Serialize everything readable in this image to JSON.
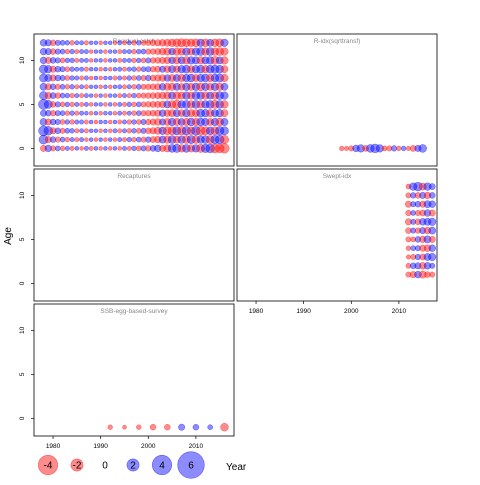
{
  "ylabel": "Age",
  "xlabel": "Year",
  "x_ticks": [
    "1980",
    "1990",
    "2000",
    "2010"
  ],
  "y_ticks": [
    "0",
    "5",
    "10"
  ],
  "colors": {
    "negative": "#ff0000",
    "positive": "#0000ff",
    "frame": "#000000",
    "panel_title": "#888888"
  },
  "legend": {
    "labels": [
      "-4",
      "-2",
      "0",
      "2",
      "4",
      "6"
    ],
    "values": [
      -4,
      -2,
      0,
      2,
      4,
      6
    ],
    "year_label": "Year"
  },
  "chart_data": [
    {
      "type": "bubble",
      "title": "Residual catch",
      "xlim": [
        1976,
        2018
      ],
      "ylim": [
        -2,
        13
      ],
      "years": [
        1978,
        1979,
        1980,
        1981,
        1982,
        1983,
        1984,
        1985,
        1986,
        1987,
        1988,
        1989,
        1990,
        1991,
        1992,
        1993,
        1994,
        1995,
        1996,
        1997,
        1998,
        1999,
        2000,
        2001,
        2002,
        2003,
        2004,
        2005,
        2006,
        2007,
        2008,
        2009,
        2010,
        2011,
        2012,
        2013,
        2014,
        2015,
        2016
      ],
      "ages": [
        0,
        1,
        2,
        3,
        4,
        5,
        6,
        7,
        8,
        9,
        10,
        11,
        12
      ],
      "note": "residuals by year (rows ordered by age 0..12, columns by year 1978..2016)",
      "residuals": [
        [
          -1.0,
          1.2,
          -0.6,
          0.5,
          -0.4,
          0.3,
          -0.3,
          0.2,
          -0.2,
          0.3,
          -0.3,
          0.2,
          -0.2,
          0.2,
          -0.2,
          0.2,
          -0.2,
          0.3,
          -0.3,
          0.4,
          -0.5,
          0.6,
          -0.7,
          0.8,
          1.2,
          -1.0,
          -1.4,
          1.8,
          2.0,
          -1.6,
          1.8,
          -1.5,
          1.6,
          -2.0,
          2.2,
          2.4,
          -2.6,
          -2.4,
          -3.0
        ],
        [
          2.6,
          -1.0,
          0.8,
          -0.6,
          0.5,
          -0.4,
          0.3,
          -0.3,
          0.3,
          -0.2,
          0.2,
          -0.2,
          0.2,
          -0.2,
          0.2,
          -0.2,
          0.3,
          -0.3,
          0.4,
          -0.4,
          0.5,
          -0.6,
          0.7,
          -0.9,
          -1.2,
          1.4,
          -1.6,
          1.8,
          -1.5,
          1.6,
          -1.8,
          2.0,
          -1.8,
          1.6,
          1.8,
          -2.0,
          2.2,
          2.4,
          -2.2
        ],
        [
          3.2,
          2.4,
          -1.0,
          0.8,
          -0.6,
          0.5,
          0.4,
          -0.3,
          0.3,
          -0.3,
          0.2,
          0.2,
          -0.2,
          0.2,
          -0.2,
          0.3,
          -0.3,
          0.3,
          -0.4,
          0.4,
          -0.5,
          0.6,
          -0.8,
          -1.0,
          -1.4,
          1.6,
          -1.8,
          -2.0,
          2.0,
          -2.2,
          2.2,
          -1.8,
          2.4,
          -2.6,
          -2.0,
          1.8,
          -2.0,
          2.2,
          2.0
        ],
        [
          1.4,
          -1.0,
          0.8,
          0.6,
          -0.5,
          0.4,
          -0.4,
          0.3,
          0.3,
          -0.3,
          0.2,
          -0.2,
          0.2,
          0.2,
          -0.2,
          0.2,
          -0.3,
          0.3,
          -0.4,
          0.4,
          -0.5,
          0.6,
          -0.7,
          -0.9,
          -1.2,
          1.0,
          -1.4,
          1.6,
          -1.5,
          1.4,
          -1.6,
          1.8,
          -1.6,
          1.8,
          1.6,
          -1.4,
          1.6,
          -1.8,
          1.5
        ],
        [
          1.0,
          0.8,
          -0.7,
          0.6,
          0.5,
          -0.4,
          0.4,
          -0.3,
          0.3,
          0.2,
          -0.2,
          0.2,
          -0.2,
          0.2,
          0.2,
          -0.2,
          0.3,
          -0.3,
          0.3,
          -0.4,
          0.5,
          -0.6,
          -0.7,
          -0.8,
          -1.0,
          1.2,
          -1.2,
          -1.4,
          1.4,
          -1.3,
          1.6,
          -1.5,
          -1.4,
          1.8,
          1.6,
          -1.5,
          1.4,
          1.6,
          -1.4
        ],
        [
          3.4,
          2.0,
          -0.8,
          0.6,
          -0.5,
          0.4,
          -0.4,
          0.3,
          -0.3,
          0.3,
          -0.2,
          0.2,
          0.2,
          -0.2,
          0.2,
          -0.2,
          0.3,
          -0.3,
          0.4,
          -0.4,
          0.5,
          -0.6,
          -0.7,
          -0.9,
          -1.0,
          -1.2,
          1.4,
          -1.6,
          -2.2,
          1.6,
          1.8,
          -1.6,
          1.8,
          -1.6,
          1.6,
          1.8,
          -2.0,
          1.8,
          -1.6
        ],
        [
          2.0,
          -1.2,
          0.9,
          -0.7,
          0.5,
          0.4,
          -0.4,
          0.3,
          -0.3,
          0.3,
          0.2,
          -0.2,
          0.2,
          -0.2,
          0.2,
          0.2,
          -0.3,
          0.3,
          -0.3,
          0.4,
          -0.5,
          -0.6,
          -0.7,
          -0.8,
          -1.0,
          -1.2,
          -1.4,
          1.4,
          -1.6,
          -1.4,
          1.6,
          -1.4,
          1.8,
          1.6,
          -1.6,
          1.4,
          -1.6,
          1.8,
          1.6
        ],
        [
          1.4,
          -1.0,
          0.8,
          -0.6,
          0.5,
          -0.4,
          0.4,
          -0.3,
          0.3,
          -0.3,
          0.2,
          0.2,
          -0.2,
          0.2,
          -0.2,
          0.2,
          0.3,
          -0.3,
          0.3,
          -0.4,
          0.5,
          -0.6,
          -0.7,
          -0.8,
          -1.0,
          1.2,
          -1.4,
          -1.5,
          1.4,
          -1.2,
          1.6,
          -1.4,
          1.6,
          -1.8,
          1.6,
          -1.4,
          1.6,
          -1.6,
          1.4
        ],
        [
          2.0,
          1.4,
          -1.0,
          0.8,
          0.6,
          -0.5,
          0.4,
          0.3,
          -0.3,
          0.3,
          -0.2,
          0.2,
          -0.2,
          0.2,
          0.2,
          -0.3,
          0.3,
          -0.3,
          0.4,
          -0.4,
          0.5,
          -0.6,
          0.7,
          -0.8,
          -1.0,
          -1.2,
          1.2,
          -1.4,
          1.4,
          -1.6,
          1.6,
          1.8,
          -1.4,
          1.6,
          1.8,
          -1.6,
          1.8,
          2.0,
          -1.6
        ],
        [
          2.2,
          1.6,
          -1.0,
          0.8,
          0.6,
          -0.5,
          0.4,
          0.3,
          0.3,
          -0.3,
          0.2,
          0.2,
          -0.2,
          0.2,
          -0.2,
          0.2,
          0.3,
          -0.3,
          0.3,
          0.4,
          -0.4,
          0.5,
          0.6,
          -0.7,
          -0.9,
          1.0,
          -1.2,
          1.4,
          -1.2,
          1.6,
          1.8,
          -1.4,
          1.6,
          1.8,
          -1.6,
          1.8,
          2.0,
          1.8,
          -1.4
        ],
        [
          1.2,
          -1.0,
          0.8,
          0.6,
          -0.5,
          0.4,
          0.4,
          -0.3,
          0.3,
          0.3,
          -0.2,
          0.2,
          0.2,
          -0.2,
          0.2,
          0.2,
          -0.3,
          0.3,
          0.3,
          -0.4,
          0.4,
          -0.5,
          0.6,
          -0.7,
          -0.8,
          -1.0,
          -1.2,
          1.2,
          -1.4,
          1.4,
          -1.6,
          1.6,
          1.4,
          -1.6,
          1.4,
          1.6,
          -1.8,
          1.4,
          -1.6
        ],
        [
          1.2,
          1.0,
          -0.8,
          0.6,
          0.5,
          -0.4,
          0.4,
          -0.3,
          0.3,
          0.3,
          -0.2,
          0.2,
          0.2,
          -0.2,
          0.2,
          0.2,
          -0.3,
          0.3,
          0.3,
          -0.4,
          0.4,
          0.5,
          -0.6,
          -0.7,
          -0.9,
          -1.2,
          -1.4,
          1.2,
          -1.6,
          -1.4,
          1.6,
          -1.4,
          1.6,
          1.8,
          -1.6,
          1.8,
          -1.6,
          -1.8,
          -1.6
        ],
        [
          1.2,
          1.0,
          -0.8,
          0.6,
          0.5,
          0.4,
          -0.4,
          0.3,
          0.3,
          -0.3,
          0.2,
          0.2,
          -0.2,
          0.2,
          0.2,
          -0.2,
          0.3,
          -0.3,
          0.3,
          -0.4,
          0.4,
          -0.5,
          -0.6,
          -0.8,
          -1.0,
          -1.2,
          -1.4,
          -1.6,
          -1.8,
          -2.0,
          -1.8,
          -1.6,
          -1.8,
          1.6,
          -1.8,
          1.4,
          -1.6,
          -1.8,
          1.6
        ]
      ]
    },
    {
      "type": "bubble",
      "title": "R-idx(sqrttransf)",
      "xlim": [
        1976,
        2018
      ],
      "ylim": [
        -2,
        13
      ],
      "points": [
        {
          "x": 1998,
          "y": 0,
          "v": -0.4
        },
        {
          "x": 1999,
          "y": 0,
          "v": -0.3
        },
        {
          "x": 2000,
          "y": 0,
          "v": -0.6
        },
        {
          "x": 2001,
          "y": 0,
          "v": 1.2
        },
        {
          "x": 2002,
          "y": 0,
          "v": 1.6
        },
        {
          "x": 2003,
          "y": 0,
          "v": -0.8
        },
        {
          "x": 2004,
          "y": 0,
          "v": 1.8
        },
        {
          "x": 2005,
          "y": 0,
          "v": 2.4
        },
        {
          "x": 2006,
          "y": 0,
          "v": 1.6
        },
        {
          "x": 2007,
          "y": 0,
          "v": -0.5
        },
        {
          "x": 2008,
          "y": 0,
          "v": -0.6
        },
        {
          "x": 2009,
          "y": 0,
          "v": 0.7
        },
        {
          "x": 2010,
          "y": 0,
          "v": -0.4
        },
        {
          "x": 2011,
          "y": 0,
          "v": 0.4
        },
        {
          "x": 2012,
          "y": 0,
          "v": -0.3
        },
        {
          "x": 2013,
          "y": 0,
          "v": -0.9
        },
        {
          "x": 2014,
          "y": 0,
          "v": 1.0
        },
        {
          "x": 2015,
          "y": 0,
          "v": 1.8
        }
      ]
    },
    {
      "type": "bubble",
      "title": "Recaptures",
      "xlim": [
        1976,
        2018
      ],
      "ylim": [
        -2,
        13
      ],
      "points": []
    },
    {
      "type": "bubble",
      "title": "Swept-idx",
      "xlim": [
        1976,
        2018
      ],
      "ylim": [
        -2,
        13
      ],
      "years": [
        2012,
        2013,
        2014,
        2015,
        2016,
        2017
      ],
      "ages": [
        1,
        2,
        3,
        4,
        5,
        6,
        7,
        8,
        9,
        10,
        11
      ],
      "residuals": [
        [
          -0.6,
          -1.0,
          1.2,
          -1.4,
          -0.8,
          -0.6
        ],
        [
          -0.5,
          0.8,
          1.0,
          -1.2,
          1.2,
          0.6
        ],
        [
          -0.3,
          -0.6,
          0.7,
          -0.9,
          1.4,
          1.6
        ],
        [
          -0.4,
          0.5,
          0.6,
          -1.0,
          -1.2,
          1.2
        ],
        [
          -0.6,
          -0.5,
          0.8,
          -1.1,
          1.4,
          -1.0
        ],
        [
          -0.8,
          0.6,
          -0.7,
          1.0,
          -1.2,
          1.4
        ],
        [
          -1.0,
          0.6,
          -0.8,
          1.2,
          1.4,
          1.6
        ],
        [
          -0.7,
          0.5,
          -0.6,
          -0.9,
          1.2,
          -1.0
        ],
        [
          -1.0,
          0.6,
          0.8,
          -1.0,
          1.4,
          1.2
        ],
        [
          -0.6,
          0.7,
          -0.8,
          1.0,
          -1.2,
          0.8
        ],
        [
          -0.5,
          1.6,
          2.4,
          -1.4,
          1.6,
          0.9
        ]
      ]
    },
    {
      "type": "bubble",
      "title": "SSB-egg-based-survey",
      "xlim": [
        1976,
        2018
      ],
      "ylim": [
        -2,
        13
      ],
      "points": [
        {
          "x": 1992,
          "y": -1,
          "v": -0.4
        },
        {
          "x": 1995,
          "y": -1,
          "v": -0.2
        },
        {
          "x": 1998,
          "y": -1,
          "v": -0.4
        },
        {
          "x": 2001,
          "y": -1,
          "v": -0.8
        },
        {
          "x": 2004,
          "y": -1,
          "v": -0.8
        },
        {
          "x": 2007,
          "y": -1,
          "v": 1.0
        },
        {
          "x": 2010,
          "y": -1,
          "v": 0.8
        },
        {
          "x": 2013,
          "y": -1,
          "v": 0.5
        },
        {
          "x": 2016,
          "y": -1,
          "v": -1.8
        }
      ]
    }
  ]
}
